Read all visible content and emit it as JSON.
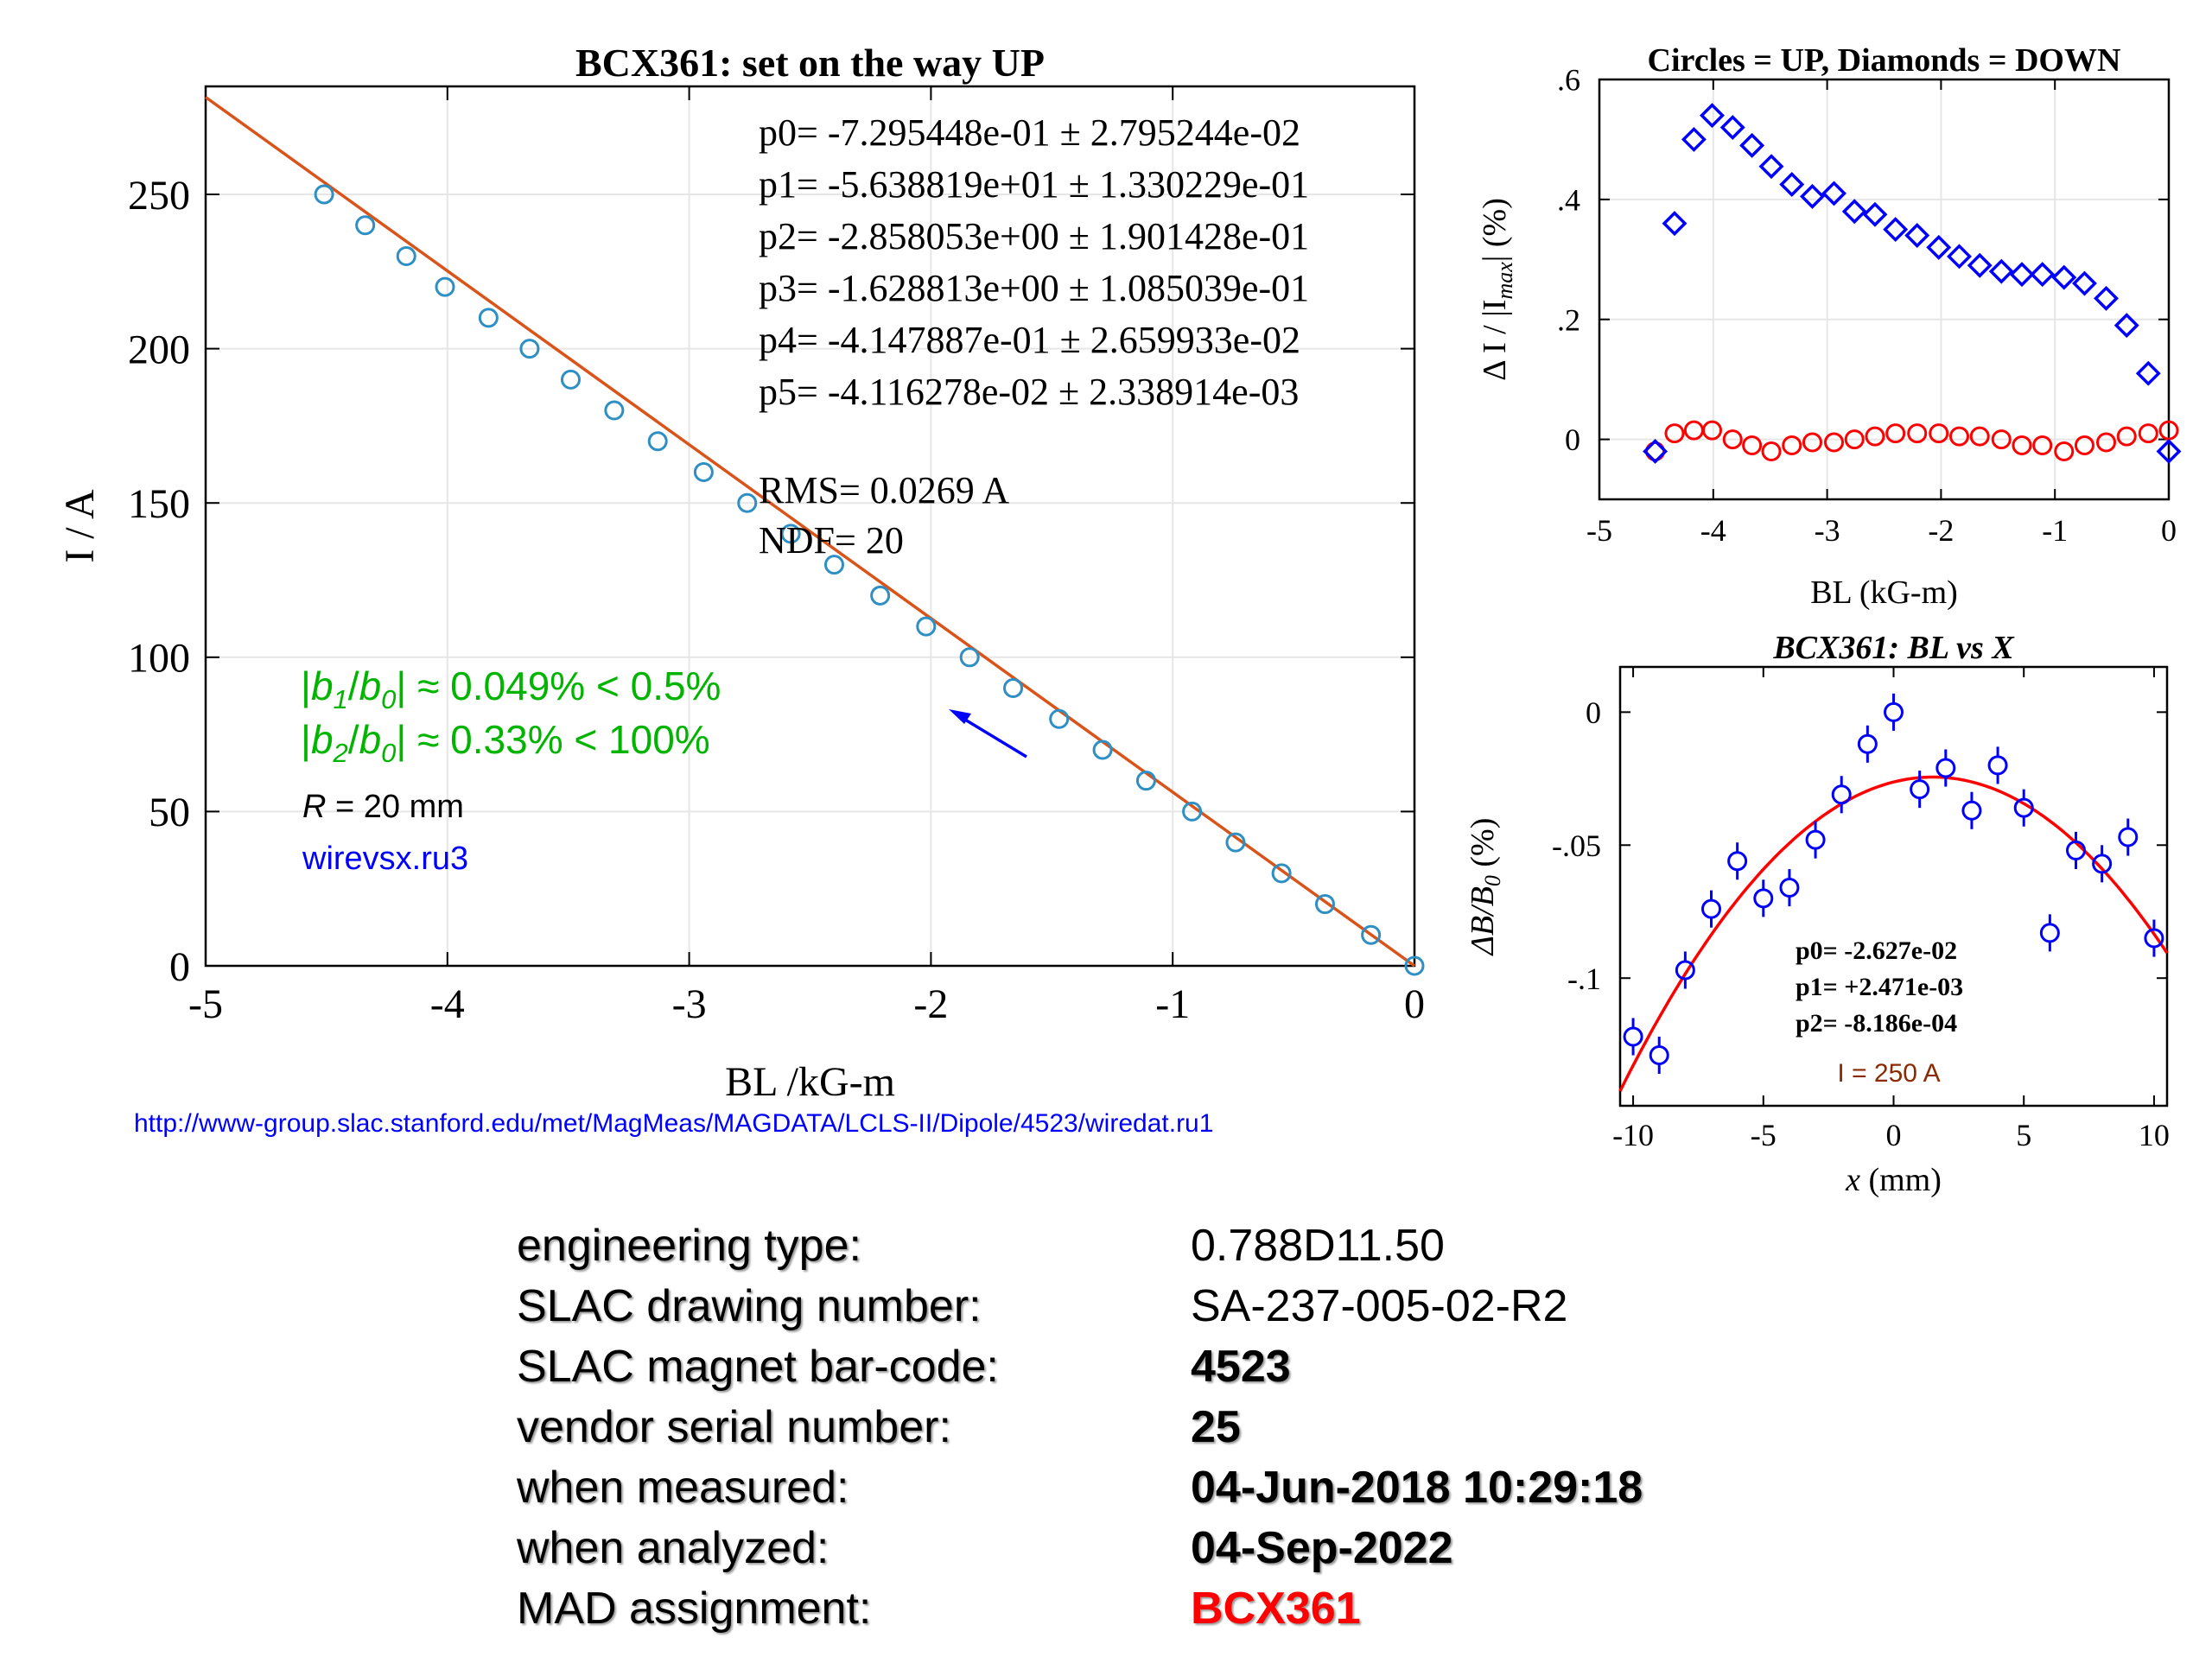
{
  "colors": {
    "fit_line": "#d9541a",
    "up_marker": "#2e8fc4",
    "up_marker_residual": "#ff0000",
    "down_marker": "#0000ff",
    "annotation_green": "#00b400",
    "annotation_blue": "#0000ff",
    "fit_curve_bx": "#ff0000",
    "current_label": "#8b2a00",
    "mad_red": "#ff0000",
    "grid": "#e6e6e6"
  },
  "main_chart": {
    "title": "BCX361: set on the way UP",
    "xlabel": "BL /kG-m",
    "ylabel": "I / A",
    "url": "http://www-group.slac.stanford.edu/met/MagMeas/MAGDATA/LCLS-II/Dipole/4523/wiredat.ru1",
    "fit_params": [
      "p0= -7.295448e-01 ±  2.795244e-02",
      "p1= -5.638819e+01 ±  1.330229e-01",
      "p2= -2.858053e+00 ±  1.901428e-01",
      "p3= -1.628813e+00 ±  1.085039e-01",
      "p4= -4.147887e-01 ±  2.659933e-02",
      "p5= -4.116278e-02 ±  2.338914e-03"
    ],
    "rms": "RMS= 0.0269 A",
    "ndf": "NDF=    20",
    "b1_text": "|b1/b0| ≈ 0.049% < 0.5%",
    "b2_text": "|b2/b0| ≈ 0.33% < 100%",
    "r_text": "R = 20 mm",
    "file_text": "wirevsx.ru3"
  },
  "residual_chart": {
    "title": "Circles = UP, Diamonds = DOWN",
    "xlabel": "BL (kG-m)",
    "ylabel": "Δ I / |Imax| (%)"
  },
  "bx_chart": {
    "title": "BCX361: BL vs X",
    "xlabel": "x (mm)",
    "ylabel": "ΔB/B0 (%)",
    "fit_p0": "p0= -2.627e-02",
    "fit_p1": "p1= +2.471e-03",
    "fit_p2": "p2= -8.186e-04",
    "current": "I = 250 A"
  },
  "chart_data": [
    {
      "type": "scatter",
      "title": "BCX361: set on the way UP",
      "xlabel": "BL /kG-m",
      "ylabel": "I / A",
      "xlim": [
        -5,
        0
      ],
      "ylim": [
        0,
        285
      ],
      "xticks": [
        -5,
        -4,
        -3,
        -2,
        -1,
        0
      ],
      "yticks": [
        0,
        50,
        100,
        150,
        200,
        250
      ],
      "grid": true,
      "series": [
        {
          "x": [
            -4.51,
            -4.34,
            -4.17,
            -4.01,
            -3.83,
            -3.66,
            -3.49,
            -3.31,
            -3.13,
            -2.94,
            -2.76,
            -2.58,
            -2.4,
            -2.21,
            -2.02,
            -1.84,
            -1.66,
            -1.47,
            -1.29,
            -1.11,
            -0.92,
            -0.74,
            -0.55,
            -0.37,
            -0.18,
            0.0
          ],
          "y": [
            250,
            240,
            230,
            220,
            210,
            200,
            190,
            180,
            170,
            160,
            150,
            140,
            130,
            120,
            110,
            100,
            90,
            80,
            70,
            60,
            50,
            40,
            30,
            20,
            10,
            0
          ]
        }
      ],
      "fit_line": {
        "x": [
          -5.0,
          0.0
        ],
        "y": [
          281.5,
          0.0
        ]
      }
    },
    {
      "type": "scatter",
      "title": "Circles = UP, Diamonds = DOWN",
      "xlabel": "BL (kG-m)",
      "ylabel": "Δ I / |Imax| (%)",
      "xlim": [
        -5,
        0
      ],
      "ylim": [
        -0.1,
        0.6
      ],
      "xticks": [
        -5,
        -4,
        -3,
        -2,
        -1,
        0
      ],
      "yticks": [
        0,
        0.2,
        0.4,
        0.6
      ],
      "grid": true,
      "series": [
        {
          "name": "Circles = UP",
          "marker": "circle",
          "x": [
            -4.51,
            -4.34,
            -4.17,
            -4.01,
            -3.83,
            -3.66,
            -3.49,
            -3.31,
            -3.13,
            -2.94,
            -2.76,
            -2.58,
            -2.4,
            -2.21,
            -2.02,
            -1.84,
            -1.66,
            -1.47,
            -1.29,
            -1.11,
            -0.92,
            -0.74,
            -0.55,
            -0.37,
            -0.18,
            0.0
          ],
          "y": [
            -0.02,
            0.01,
            0.015,
            0.015,
            0.0,
            -0.01,
            -0.02,
            -0.01,
            -0.005,
            -0.005,
            0.0,
            0.005,
            0.01,
            0.01,
            0.01,
            0.005,
            0.005,
            0.0,
            -0.01,
            -0.01,
            -0.02,
            -0.01,
            -0.005,
            0.005,
            0.01,
            0.015
          ]
        },
        {
          "name": "Diamonds = DOWN",
          "marker": "diamond",
          "x": [
            -4.51,
            -4.34,
            -4.17,
            -4.01,
            -3.83,
            -3.66,
            -3.49,
            -3.31,
            -3.13,
            -2.94,
            -2.76,
            -2.58,
            -2.4,
            -2.21,
            -2.02,
            -1.84,
            -1.66,
            -1.47,
            -1.29,
            -1.11,
            -0.92,
            -0.74,
            -0.55,
            -0.37,
            -0.18,
            0.0
          ],
          "y": [
            -0.02,
            0.36,
            0.5,
            0.54,
            0.52,
            0.49,
            0.455,
            0.425,
            0.405,
            0.41,
            0.38,
            0.375,
            0.35,
            0.34,
            0.32,
            0.305,
            0.29,
            0.28,
            0.275,
            0.275,
            0.27,
            0.26,
            0.235,
            0.19,
            0.11,
            -0.02
          ]
        }
      ]
    },
    {
      "type": "scatter",
      "title": "BCX361: BL vs X",
      "xlabel": "x (mm)",
      "ylabel": "ΔB/B0 (%)",
      "xlim": [
        -10.5,
        10.5
      ],
      "ylim": [
        -0.148,
        0.017
      ],
      "xticks": [
        -10,
        -5,
        0,
        5,
        10
      ],
      "yticks": [
        0,
        -0.05,
        -0.1
      ],
      "grid": false,
      "series": [
        {
          "x": [
            -10,
            -9,
            -8,
            -7,
            -6,
            -5,
            -4,
            -3,
            -2,
            -1,
            0,
            1,
            2,
            3,
            4,
            5,
            6,
            7,
            8,
            9,
            10
          ],
          "y": [
            -0.122,
            -0.129,
            -0.097,
            -0.074,
            -0.056,
            -0.07,
            -0.066,
            -0.048,
            -0.031,
            -0.012,
            0.0,
            -0.029,
            -0.021,
            -0.037,
            -0.02,
            -0.036,
            -0.083,
            -0.052,
            -0.057,
            -0.047,
            -0.085
          ],
          "yerr": [
            0.007,
            0.007,
            0.007,
            0.007,
            0.007,
            0.007,
            0.007,
            0.007,
            0.007,
            0.007,
            0.007,
            0.007,
            0.007,
            0.007,
            0.007,
            0.007,
            0.007,
            0.007,
            0.007,
            0.007,
            0.007
          ]
        }
      ],
      "fit": {
        "p0": -0.02627,
        "p1": 0.002471,
        "p2": -0.0008186
      }
    }
  ],
  "info": [
    {
      "label": "engineering type:",
      "value": "0.788D11.50",
      "style": "normal"
    },
    {
      "label": "SLAC drawing number:",
      "value": "SA-237-005-02-R2",
      "style": "normal"
    },
    {
      "label": "SLAC magnet bar-code:",
      "value": "4523",
      "style": "bold"
    },
    {
      "label": "vendor serial number:",
      "value": "25",
      "style": "bold"
    },
    {
      "label": "when measured:",
      "value": "04-Jun-2018 10:29:18",
      "style": "bold"
    },
    {
      "label": "when analyzed:",
      "value": "04-Sep-2022",
      "style": "bold"
    },
    {
      "label": "MAD assignment:",
      "value": "BCX361",
      "style": "bold-red"
    }
  ]
}
